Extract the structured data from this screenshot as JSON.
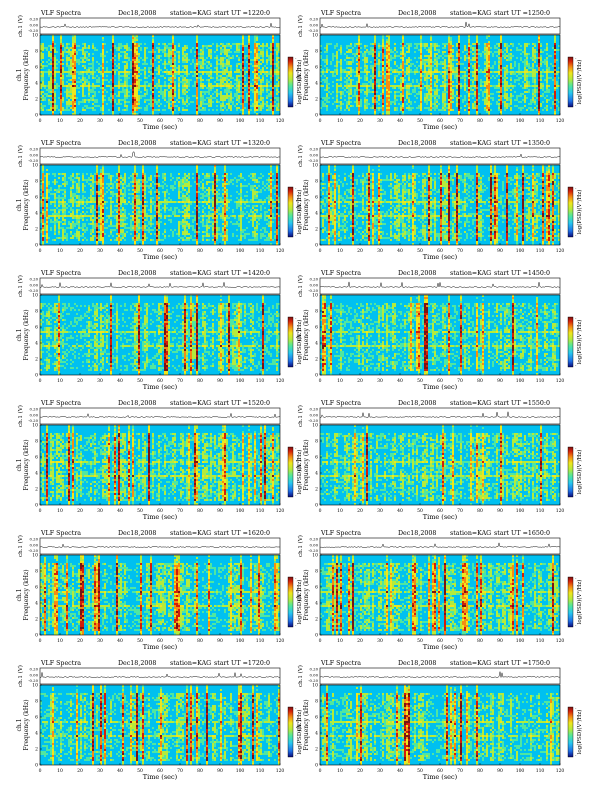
{
  "panels": [
    {
      "heading": {
        "title": "VLF Spectra",
        "date": "Dec18,2008",
        "station": "station=KAG",
        "start": "start  UT  =1220:0"
      }
    },
    {
      "heading": {
        "title": "VLF Spectra",
        "date": "Dec18,2008",
        "station": "station=KAG",
        "start": "start  UT  =1250:0"
      }
    },
    {
      "heading": {
        "title": "VLF Spectra",
        "date": "Dec18,2008",
        "station": "station=KAG",
        "start": "start  UT  =1320:0"
      }
    },
    {
      "heading": {
        "title": "VLF Spectra",
        "date": "Dec18,2008",
        "station": "station=KAG",
        "start": "start  UT  =1350:0"
      }
    },
    {
      "heading": {
        "title": "VLF Spectra",
        "date": "Dec18,2008",
        "station": "station=KAG",
        "start": "start  UT  =1420:0"
      }
    },
    {
      "heading": {
        "title": "VLF Spectra",
        "date": "Dec18,2008",
        "station": "station=KAG",
        "start": "start  UT  =1450:0"
      }
    },
    {
      "heading": {
        "title": "VLF Spectra",
        "date": "Dec18,2008",
        "station": "station=KAG",
        "start": "start  UT  =1520:0"
      }
    },
    {
      "heading": {
        "title": "VLF Spectra",
        "date": "Dec18,2008",
        "station": "station=KAG",
        "start": "start  UT  =1550:0"
      }
    },
    {
      "heading": {
        "title": "VLF Spectra",
        "date": "Dec18,2008",
        "station": "station=KAG",
        "start": "start  UT  =1620:0"
      }
    },
    {
      "heading": {
        "title": "VLF Spectra",
        "date": "Dec18,2008",
        "station": "station=KAG",
        "start": "start  UT  =1650:0"
      }
    },
    {
      "heading": {
        "title": "VLF Spectra",
        "date": "Dec18,2008",
        "station": "station=KAG",
        "start": "start  UT  =1720:0"
      }
    },
    {
      "heading": {
        "title": "VLF Spectra",
        "date": "Dec18,2008",
        "station": "station=KAG",
        "start": "start  UT  =1750:0"
      }
    }
  ],
  "labels": {
    "strip_ylabel": "ch.1 (V)",
    "freq_ylabel_line1": "ch.1",
    "freq_ylabel_line2": "Frequency  (kHz)",
    "colorbar_label": "log(PSD)(V²/Hz)",
    "xlabel": "Time  (sec)"
  },
  "strip_ticks": [
    "0.20",
    "0.00",
    "-0.20"
  ],
  "colors": {
    "ramp": [
      "#0a0a78",
      "#1e6ee6",
      "#28c8f0",
      "#50e6a0",
      "#b4eb3c",
      "#f0e61e",
      "#f58c14",
      "#d21e0a",
      "#781414"
    ],
    "background": "#00c0f0"
  },
  "chart_data": {
    "type": "heatmap",
    "description_units": {
      "x": "Time (sec)",
      "y": "Frequency (kHz)"
    },
    "xlim": [
      0,
      120
    ],
    "ylim": [
      0,
      10
    ],
    "x_ticks": [
      0,
      10,
      20,
      30,
      40,
      50,
      60,
      70,
      80,
      90,
      100,
      110,
      120
    ],
    "y_ticks": [
      0,
      2,
      4,
      6,
      8,
      10
    ],
    "colorbar_ticks": [
      "-",
      "-"
    ],
    "strip_ylim": [
      -0.2,
      0.2
    ],
    "panel_count": 12
  }
}
